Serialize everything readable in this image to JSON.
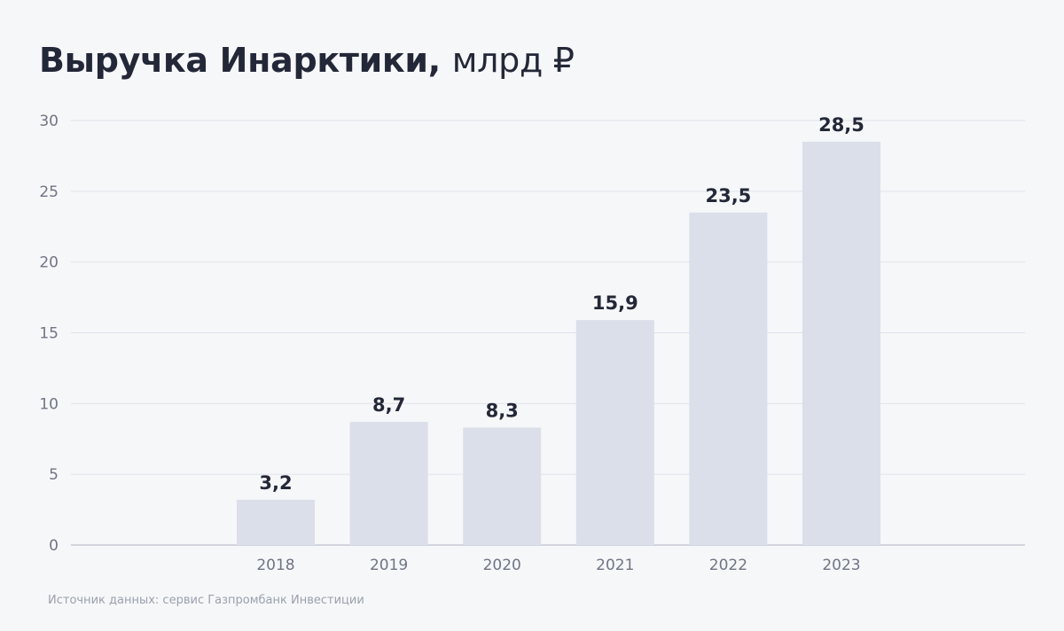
{
  "header": {
    "title_main": "Выручка Инарктики,",
    "title_unit": "млрд ₽"
  },
  "chart_data": {
    "type": "bar",
    "categories": [
      "2018",
      "2019",
      "2020",
      "2021",
      "2022",
      "2023"
    ],
    "values": [
      3.2,
      8.7,
      8.3,
      15.9,
      23.5,
      28.5
    ],
    "value_labels": [
      "3,2",
      "8,7",
      "8,3",
      "15,9",
      "23,5",
      "28,5"
    ],
    "title": "Выручка Инарктики, млрд ₽",
    "xlabel": "",
    "ylabel": "",
    "ylim": [
      0,
      30
    ],
    "yticks": [
      0,
      5,
      10,
      15,
      20,
      25,
      30
    ],
    "grid": true,
    "legend": "none",
    "colors": {
      "bar": "#dadfe9",
      "grid": "#dfe3ea",
      "axis": "#c5cad3",
      "tick_label": "#6f7585",
      "value_label": "#232838"
    }
  },
  "footer": {
    "source": "Источник данных: сервис Газпромбанк Инвестиции"
  }
}
